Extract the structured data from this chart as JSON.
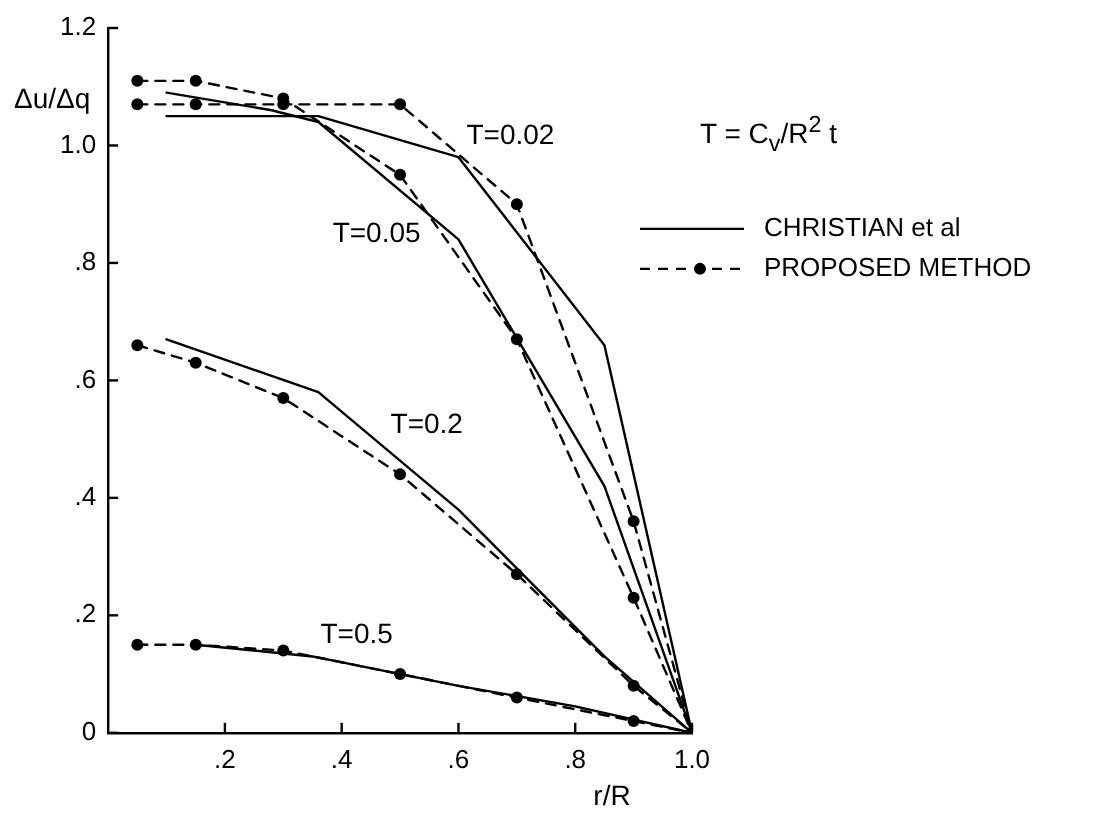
{
  "chart_data": {
    "type": "line",
    "xlabel": "r/R",
    "ylabel": "Δu/Δq",
    "xlim": [
      0,
      1
    ],
    "ylim": [
      0,
      1.2
    ],
    "xticks": [
      {
        "value": 0.2,
        "label": ".2"
      },
      {
        "value": 0.4,
        "label": ".4"
      },
      {
        "value": 0.6,
        "label": ".6"
      },
      {
        "value": 0.8,
        "label": ".8"
      },
      {
        "value": 1,
        "label": "1.0"
      }
    ],
    "yticks": [
      0,
      {
        "value": 0.2,
        "label": ".2"
      },
      {
        "value": 0.4,
        "label": ".4"
      },
      {
        "value": 0.6,
        "label": ".6"
      },
      {
        "value": 0.8,
        "label": ".8"
      },
      {
        "value": 1,
        "label": "1.0"
      },
      1.2
    ],
    "grid": false,
    "legend": "right",
    "series": [
      {
        "name": "CHRISTIAN et al",
        "color": "#000000",
        "line_style": "solid",
        "marker": "none",
        "x": [
          0.1,
          0.36,
          0.6,
          0.85,
          1
        ],
        "values": [
          1.05,
          1.05,
          0.98,
          0.66,
          0
        ]
      },
      {
        "color": "#000000",
        "line_style": "solid",
        "marker": "none",
        "x": [
          0.1,
          0.28,
          0.36,
          0.6,
          0.85,
          1
        ],
        "values": [
          1.09,
          1.06,
          1.04,
          0.84,
          0.42,
          0
        ]
      },
      {
        "color": "#000000",
        "line_style": "solid",
        "marker": "none",
        "x": [
          0.1,
          0.36,
          0.6,
          0.85,
          1
        ],
        "values": [
          0.67,
          0.58,
          0.38,
          0.13,
          0
        ]
      },
      {
        "color": "#000000",
        "line_style": "solid",
        "marker": "none",
        "x": [
          0.15,
          0.35,
          0.6,
          0.8,
          1
        ],
        "values": [
          0.15,
          0.13,
          0.08,
          0.045,
          0
        ]
      },
      {
        "name": "PROPOSED METHOD",
        "color": "#000000",
        "line_style": "dashed",
        "marker": "circle",
        "x": [
          0.05,
          0.15,
          0.3,
          0.5,
          0.7,
          0.9,
          1
        ],
        "values": [
          1.07,
          1.07,
          1.07,
          1.07,
          0.9,
          0.36,
          0
        ]
      },
      {
        "color": "#000000",
        "line_style": "dashed",
        "marker": "circle",
        "x": [
          0.05,
          0.15,
          0.3,
          0.5,
          0.7,
          0.9,
          1
        ],
        "values": [
          1.11,
          1.11,
          1.08,
          0.95,
          0.67,
          0.23,
          0
        ]
      },
      {
        "color": "#000000",
        "line_style": "dashed",
        "marker": "circle",
        "x": [
          0.05,
          0.15,
          0.3,
          0.5,
          0.7,
          0.9,
          1
        ],
        "values": [
          0.66,
          0.63,
          0.57,
          0.44,
          0.27,
          0.08,
          0
        ]
      },
      {
        "color": "#000000",
        "line_style": "dashed",
        "marker": "circle",
        "x": [
          0.05,
          0.15,
          0.3,
          0.5,
          0.7,
          0.9,
          1
        ],
        "values": [
          0.15,
          0.15,
          0.14,
          0.1,
          0.06,
          0.02,
          0
        ]
      }
    ],
    "annotations": [
      {
        "text": "T=0.02",
        "x": 0.6,
        "y": 0.98
      },
      {
        "text": "T=0.05",
        "x": 0.59,
        "y": 0.848
      },
      {
        "text": "T=0.2",
        "x": 0.47,
        "y": 0.488
      },
      {
        "text": "T=0.5",
        "x": 0.35,
        "y": 0.13
      },
      "T = C$_{v}$/R$^{2}$ t"
    ]
  }
}
